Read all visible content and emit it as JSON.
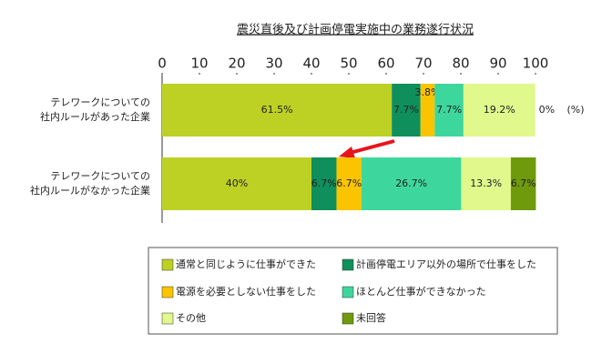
{
  "chart_data": {
    "type": "stacked-bar-horizontal",
    "title": "震災直後及び計画停電実施中の業務遂行状況",
    "unit": "(%)",
    "categories": [
      [
        "テレワークについての",
        "社内ルールがあった企業"
      ],
      [
        "テレワークについての",
        "社内ルールがなかった企業"
      ]
    ],
    "xlim": [
      0,
      100
    ],
    "xticks": [
      0,
      10,
      20,
      30,
      40,
      50,
      60,
      70,
      80,
      90,
      100
    ],
    "series": [
      {
        "name": "通常と同じように仕事ができた",
        "color": "#bdd125",
        "values": [
          61.5,
          40
        ],
        "value_labels": [
          "61.5%",
          "40%"
        ]
      },
      {
        "name": "計画停電エリア以外の場所で仕事をした",
        "color": "#0f8f5b",
        "values": [
          7.7,
          6.7
        ],
        "value_labels": [
          "7.7%",
          "6.7%"
        ]
      },
      {
        "name": "電源を必要としない仕事をした",
        "color": "#fbc400",
        "values": [
          3.8,
          6.7
        ],
        "value_labels": [
          "3.8%",
          "6.7%"
        ]
      },
      {
        "name": "ほとんど仕事ができなかった",
        "color": "#3dd69c",
        "values": [
          7.7,
          26.7
        ],
        "value_labels": [
          "7.7%",
          "26.7%"
        ]
      },
      {
        "name": "その他",
        "color": "#e0f88c",
        "values": [
          19.2,
          13.3
        ],
        "value_labels": [
          "19.2%",
          "13.3%"
        ]
      },
      {
        "name": "未回答",
        "color": "#6f9a0b",
        "values": [
          0,
          6.7
        ],
        "value_labels": [
          "0%",
          "6.7%"
        ]
      }
    ]
  }
}
